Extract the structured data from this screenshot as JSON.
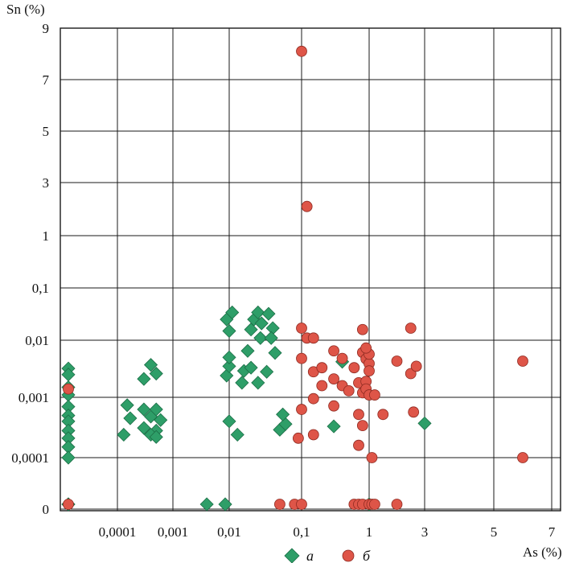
{
  "chart_data": {
    "type": "scatter",
    "title": "",
    "xlabel": "As (%)",
    "ylabel": "Sn (%)",
    "x_ticks": [
      "",
      "0,0001",
      "0,001",
      "0,01",
      "0,1",
      "1",
      "3",
      "5",
      "7"
    ],
    "y_ticks": [
      "0",
      "0,0001",
      "0,001",
      "0,01",
      "0,1",
      "1",
      "3",
      "5",
      "7",
      "9"
    ],
    "grid": true,
    "legend_position": "bottom",
    "colors": {
      "a": "#2e9e68",
      "b": "#de5548"
    },
    "series": [
      {
        "name": "а",
        "marker": "diamond",
        "points": [
          {
            "x": "0",
            "y": "0,0015"
          },
          {
            "x": "0",
            "y": "0,0032"
          },
          {
            "x": "0",
            "y": "0,0025"
          },
          {
            "x": "0",
            "y": "0,0011"
          },
          {
            "x": "0",
            "y": "0,0007"
          },
          {
            "x": "0",
            "y": "0,0005"
          },
          {
            "x": "0",
            "y": "0,0004"
          },
          {
            "x": "0",
            "y": "0,00028"
          },
          {
            "x": "0",
            "y": "0,00021"
          },
          {
            "x": "0",
            "y": "0,00015"
          },
          {
            "x": "0",
            "y": "0,0001"
          },
          {
            "x": "0",
            "y": "0"
          },
          {
            "x": "0",
            "y": "0"
          },
          {
            "x": "0,00015",
            "y": "0,00074"
          },
          {
            "x": "0,00017",
            "y": "0,00045"
          },
          {
            "x": "0,00013",
            "y": "0,00024"
          },
          {
            "x": "0,0003",
            "y": "0,0021"
          },
          {
            "x": "0,0004",
            "y": "0,0037"
          },
          {
            "x": "0,0005",
            "y": "0,0026"
          },
          {
            "x": "0,0003",
            "y": "0,00063"
          },
          {
            "x": "0,0004",
            "y": "0,00048"
          },
          {
            "x": "0,0005",
            "y": "0,00063"
          },
          {
            "x": "0,0003",
            "y": "0,00031"
          },
          {
            "x": "0,0006",
            "y": "0,00042"
          },
          {
            "x": "0,0005",
            "y": "0,00028"
          },
          {
            "x": "0,0004",
            "y": "0,00024"
          },
          {
            "x": "0,0005",
            "y": "0,00022"
          },
          {
            "x": "0,004",
            "y": "0"
          },
          {
            "x": "0,0085",
            "y": "0"
          },
          {
            "x": "0,009",
            "y": "0,0024"
          },
          {
            "x": "0,01",
            "y": "0,0035"
          },
          {
            "x": "0,01",
            "y": "0,005"
          },
          {
            "x": "0,01",
            "y": "0,015"
          },
          {
            "x": "0,009",
            "y": "0,025"
          },
          {
            "x": "0,011",
            "y": "0,034"
          },
          {
            "x": "0,01",
            "y": "0,0004"
          },
          {
            "x": "0,013",
            "y": "0,00024"
          },
          {
            "x": "0,016",
            "y": "0,0029"
          },
          {
            "x": "0,02",
            "y": "0,0033"
          },
          {
            "x": "0,015",
            "y": "0,0018"
          },
          {
            "x": "0,018",
            "y": "0,0065"
          },
          {
            "x": "0,02",
            "y": "0,016"
          },
          {
            "x": "0,022",
            "y": "0,025"
          },
          {
            "x": "0,025",
            "y": "0,034"
          },
          {
            "x": "0,028",
            "y": "0,021"
          },
          {
            "x": "0,027",
            "y": "0,011"
          },
          {
            "x": "0,035",
            "y": "0,032"
          },
          {
            "x": "0,04",
            "y": "0,017"
          },
          {
            "x": "0,038",
            "y": "0,011"
          },
          {
            "x": "0,043",
            "y": "0,006"
          },
          {
            "x": "0,033",
            "y": "0,0028"
          },
          {
            "x": "0,025",
            "y": "0,0018"
          },
          {
            "x": "0,05",
            "y": "0,00029"
          },
          {
            "x": "0,06",
            "y": "0,00036"
          },
          {
            "x": "0,055",
            "y": "0,00052"
          },
          {
            "x": "0,4",
            "y": "0,0042"
          },
          {
            "x": "0,3",
            "y": "0,00033"
          },
          {
            "x": "1",
            "y": "0"
          },
          {
            "x": "3",
            "y": "0,00037"
          }
        ]
      },
      {
        "name": "б",
        "marker": "circle",
        "points": [
          {
            "x": "0",
            "y": "0,0014"
          },
          {
            "x": "0",
            "y": "0"
          },
          {
            "x": "0,1",
            "y": "8,1"
          },
          {
            "x": "0,12",
            "y": "2,1"
          },
          {
            "x": "0,1",
            "y": "0,017"
          },
          {
            "x": "0,12",
            "y": "0,011"
          },
          {
            "x": "0,15",
            "y": "0,011"
          },
          {
            "x": "0,1",
            "y": "0,0048"
          },
          {
            "x": "0,15",
            "y": "0,0028"
          },
          {
            "x": "0,2",
            "y": "0,0033"
          },
          {
            "x": "0,3",
            "y": "0,0065"
          },
          {
            "x": "0,4",
            "y": "0,0048"
          },
          {
            "x": "0,3",
            "y": "0,0021"
          },
          {
            "x": "0,2",
            "y": "0,0016"
          },
          {
            "x": "0,4",
            "y": "0,0016"
          },
          {
            "x": "0,15",
            "y": "0,00095"
          },
          {
            "x": "0,3",
            "y": "0,00072"
          },
          {
            "x": "0,1",
            "y": "0,00063"
          },
          {
            "x": "0,09",
            "y": "0,00021"
          },
          {
            "x": "0,15",
            "y": "0,00024"
          },
          {
            "x": "0,6",
            "y": "0,0033"
          },
          {
            "x": "0,5",
            "y": "0,0013"
          },
          {
            "x": "0,7",
            "y": "0,0018"
          },
          {
            "x": "0,8",
            "y": "0,0012"
          },
          {
            "x": "0,8",
            "y": "0,0061"
          },
          {
            "x": "0,9",
            "y": "0,0047"
          },
          {
            "x": "1",
            "y": "0,0039"
          },
          {
            "x": "1",
            "y": "0,0029"
          },
          {
            "x": "0,9",
            "y": "0,0019"
          },
          {
            "x": "0,9",
            "y": "0,0014"
          },
          {
            "x": "1",
            "y": "0,0011"
          },
          {
            "x": "1,2",
            "y": "0,0011"
          },
          {
            "x": "1",
            "y": "0,0057"
          },
          {
            "x": "0,9",
            "y": "0,0073"
          },
          {
            "x": "0,8",
            "y": "0,016"
          },
          {
            "x": "0,7",
            "y": "0,00052"
          },
          {
            "x": "0,8",
            "y": "0,00034"
          },
          {
            "x": "0,7",
            "y": "0,00016"
          },
          {
            "x": "1,1",
            "y": "0,0001"
          },
          {
            "x": "1,5",
            "y": "0,00052"
          },
          {
            "x": "2",
            "y": "0,0043"
          },
          {
            "x": "2,5",
            "y": "0,017"
          },
          {
            "x": "2,5",
            "y": "0,0026"
          },
          {
            "x": "2,7",
            "y": "0,0035"
          },
          {
            "x": "2,6",
            "y": "0,00057"
          },
          {
            "x": "6",
            "y": "0,0043"
          },
          {
            "x": "6",
            "y": "0,0001"
          },
          {
            "x": "0,05",
            "y": "0"
          },
          {
            "x": "0,08",
            "y": "0"
          },
          {
            "x": "0,1",
            "y": "0"
          },
          {
            "x": "0,6",
            "y": "0"
          },
          {
            "x": "0,7",
            "y": "0"
          },
          {
            "x": "0,8",
            "y": "0"
          },
          {
            "x": "1",
            "y": "0"
          },
          {
            "x": "1,1",
            "y": "0"
          },
          {
            "x": "1,2",
            "y": "0"
          },
          {
            "x": "2",
            "y": "0"
          }
        ]
      }
    ]
  }
}
